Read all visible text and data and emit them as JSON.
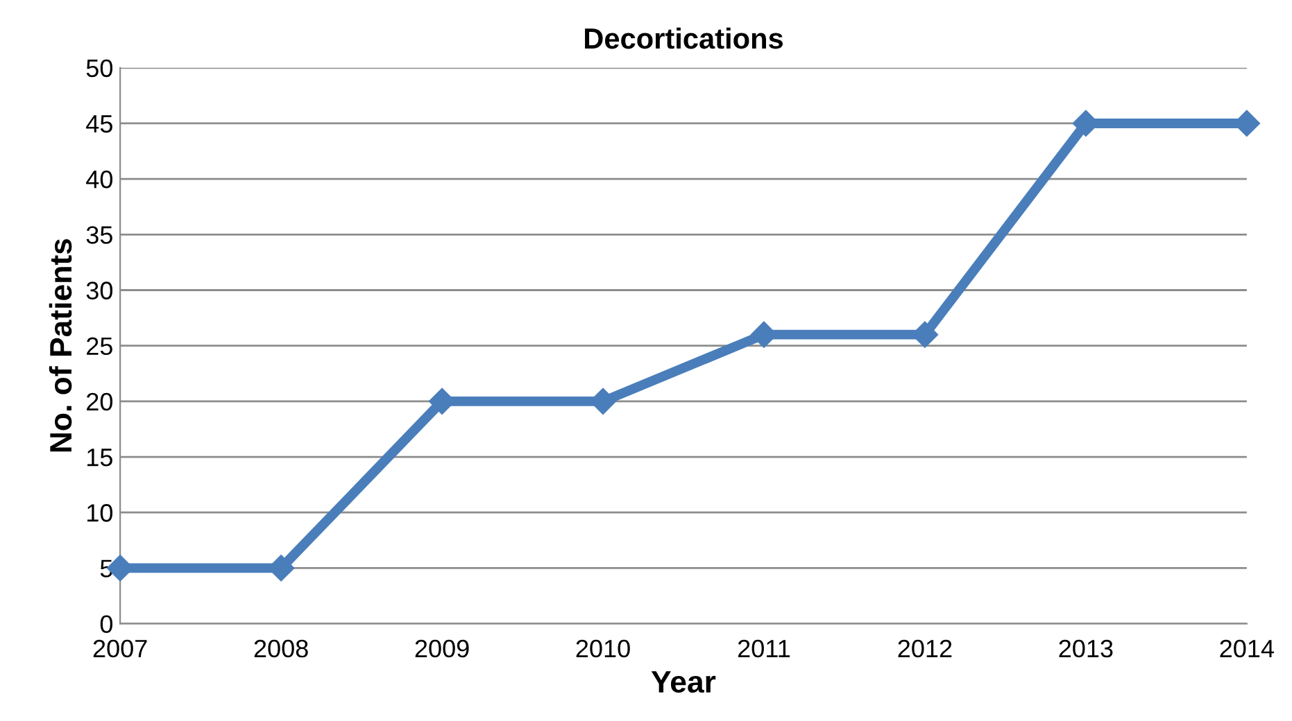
{
  "chart_data": {
    "type": "line",
    "title": "Decortications",
    "xlabel": "Year",
    "ylabel": "No. of Patients",
    "x": [
      2007,
      2008,
      2009,
      2010,
      2011,
      2012,
      2013,
      2014
    ],
    "series": [
      {
        "color": "#4a7ebb",
        "values": [
          5,
          5,
          20,
          20,
          26,
          26,
          45,
          45
        ]
      }
    ],
    "xlim": [
      2007,
      2014
    ],
    "xticks": [
      2007,
      2008,
      2009,
      2010,
      2011,
      2012,
      2013,
      2014
    ],
    "ylim": [
      0,
      50
    ],
    "yticks": [
      0,
      5,
      10,
      15,
      20,
      25,
      30,
      35,
      40,
      45,
      50
    ],
    "grid": "y",
    "marker": "diamond",
    "line_style": "solid"
  }
}
